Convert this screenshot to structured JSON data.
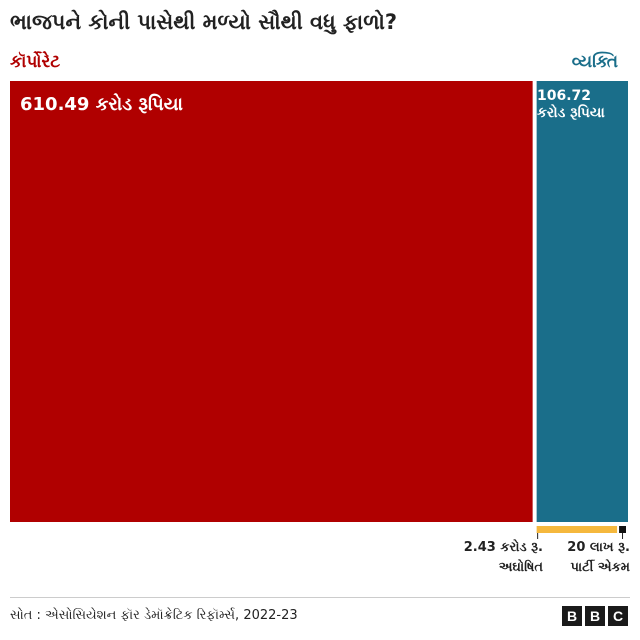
{
  "title": "ભાજપને કોની પાસેથી મળ્યો સૌથી વધુ ફાળો?",
  "colors": {
    "corporate": "#b00000",
    "individual": "#1a6e8a",
    "anonymous": "#f5b83d",
    "party_unit": "#111111"
  },
  "chart_data": {
    "type": "treemap",
    "title": "ભાજપને કોની પાસેથી મળ્યો સૌથી વધુ ફાળો?",
    "categories": [
      "કૉર્પોરેટ",
      "વ્યક્તિ",
      "અઘોષિત",
      "પાર્ટી એકમ"
    ],
    "values": [
      610.49,
      106.72,
      2.43,
      0.2
    ],
    "unit": "કરોડ રૂપિયા",
    "labels": {
      "corporate_value": "610.49 કરોડ રૂપિયા",
      "individual_value_1": "106.72",
      "individual_value_2": "કરોડ રૂપિયા",
      "anonymous_value": "2.43 કરોડ રૂ.",
      "anonymous_name": "અઘોષિત",
      "party_value": "20 લાખ રૂ.",
      "party_name": "પાર્ટી એકમ"
    }
  },
  "source": "સોત : એસોસિયેશન ફૉર ડેમૉક્રેટિક રિફૉર્મ્સ, 2022-23",
  "logo": [
    "B",
    "B",
    "C"
  ]
}
